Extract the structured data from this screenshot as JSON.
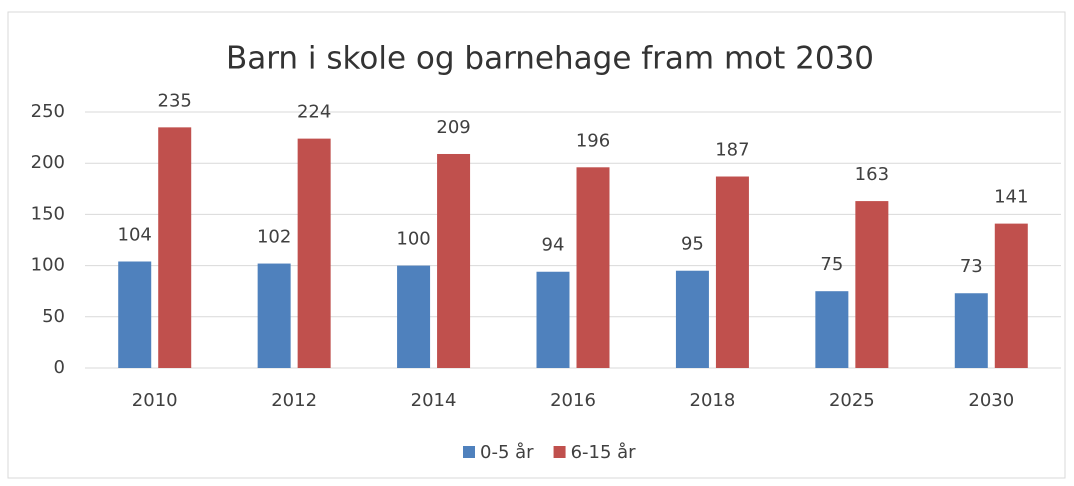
{
  "chart_data": {
    "type": "bar",
    "title": "Barn i skole og barnehage fram mot 2030",
    "categories": [
      "2010",
      "2012",
      "2014",
      "2016",
      "2018",
      "2025",
      "2030"
    ],
    "series": [
      {
        "name": "0-5 år",
        "color": "#4f81bd",
        "values": [
          104,
          102,
          100,
          94,
          95,
          75,
          73
        ]
      },
      {
        "name": "6-15 år",
        "color": "#c0504d",
        "values": [
          235,
          224,
          209,
          196,
          187,
          163,
          141
        ]
      }
    ],
    "ylim": [
      0,
      250
    ],
    "yticks": [
      0,
      50,
      100,
      150,
      200,
      250
    ],
    "grid": true,
    "legend": "bottom"
  }
}
